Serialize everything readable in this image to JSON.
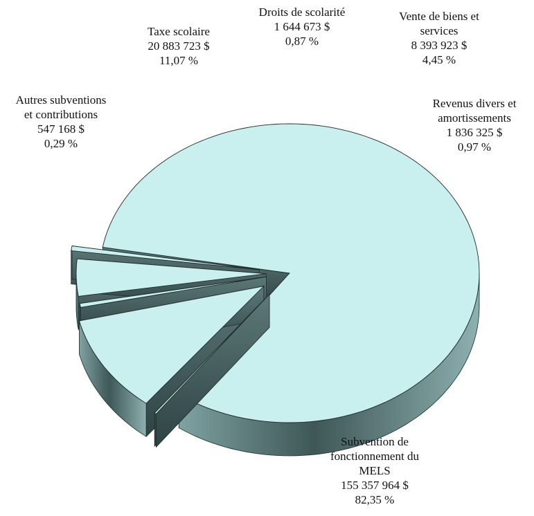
{
  "chart_data": {
    "type": "pie",
    "style": "3d-exploded",
    "colors": {
      "top": "#c9f0ef",
      "side": "#4a6262",
      "edge": "#1c2a2a"
    },
    "slices": [
      {
        "label": "Subvention de fonctionnement du MELS",
        "label_lines": [
          "Subvention de",
          "fonctionnement du",
          "MELS"
        ],
        "amount": "155 357 964 $",
        "percent": "82,35 %",
        "value": 82.35
      },
      {
        "label": "Autres subventions et contributions",
        "label_lines": [
          "Autres subventions",
          "et contributions"
        ],
        "amount": "547  168 $",
        "percent": "0,29 %",
        "value": 0.29
      },
      {
        "label": "Taxe scolaire",
        "label_lines": [
          "Taxe scolaire"
        ],
        "amount": "20 883 723 $",
        "percent": "11,07 %",
        "value": 11.07
      },
      {
        "label": "Droits de scolarité",
        "label_lines": [
          "Droits de scolarité"
        ],
        "amount": "1 644 673 $",
        "percent": "0,87 %",
        "value": 0.87
      },
      {
        "label": "Vente de biens et services",
        "label_lines": [
          "Vente de biens et",
          "services"
        ],
        "amount": "8 393 923 $",
        "percent": "4,45 %",
        "value": 4.45
      },
      {
        "label": "Revenus divers et amortissements",
        "label_lines": [
          "Revenus divers et",
          "amortissements"
        ],
        "amount": "1 836 325 $",
        "percent": "0,97 %",
        "value": 0.97
      }
    ]
  }
}
